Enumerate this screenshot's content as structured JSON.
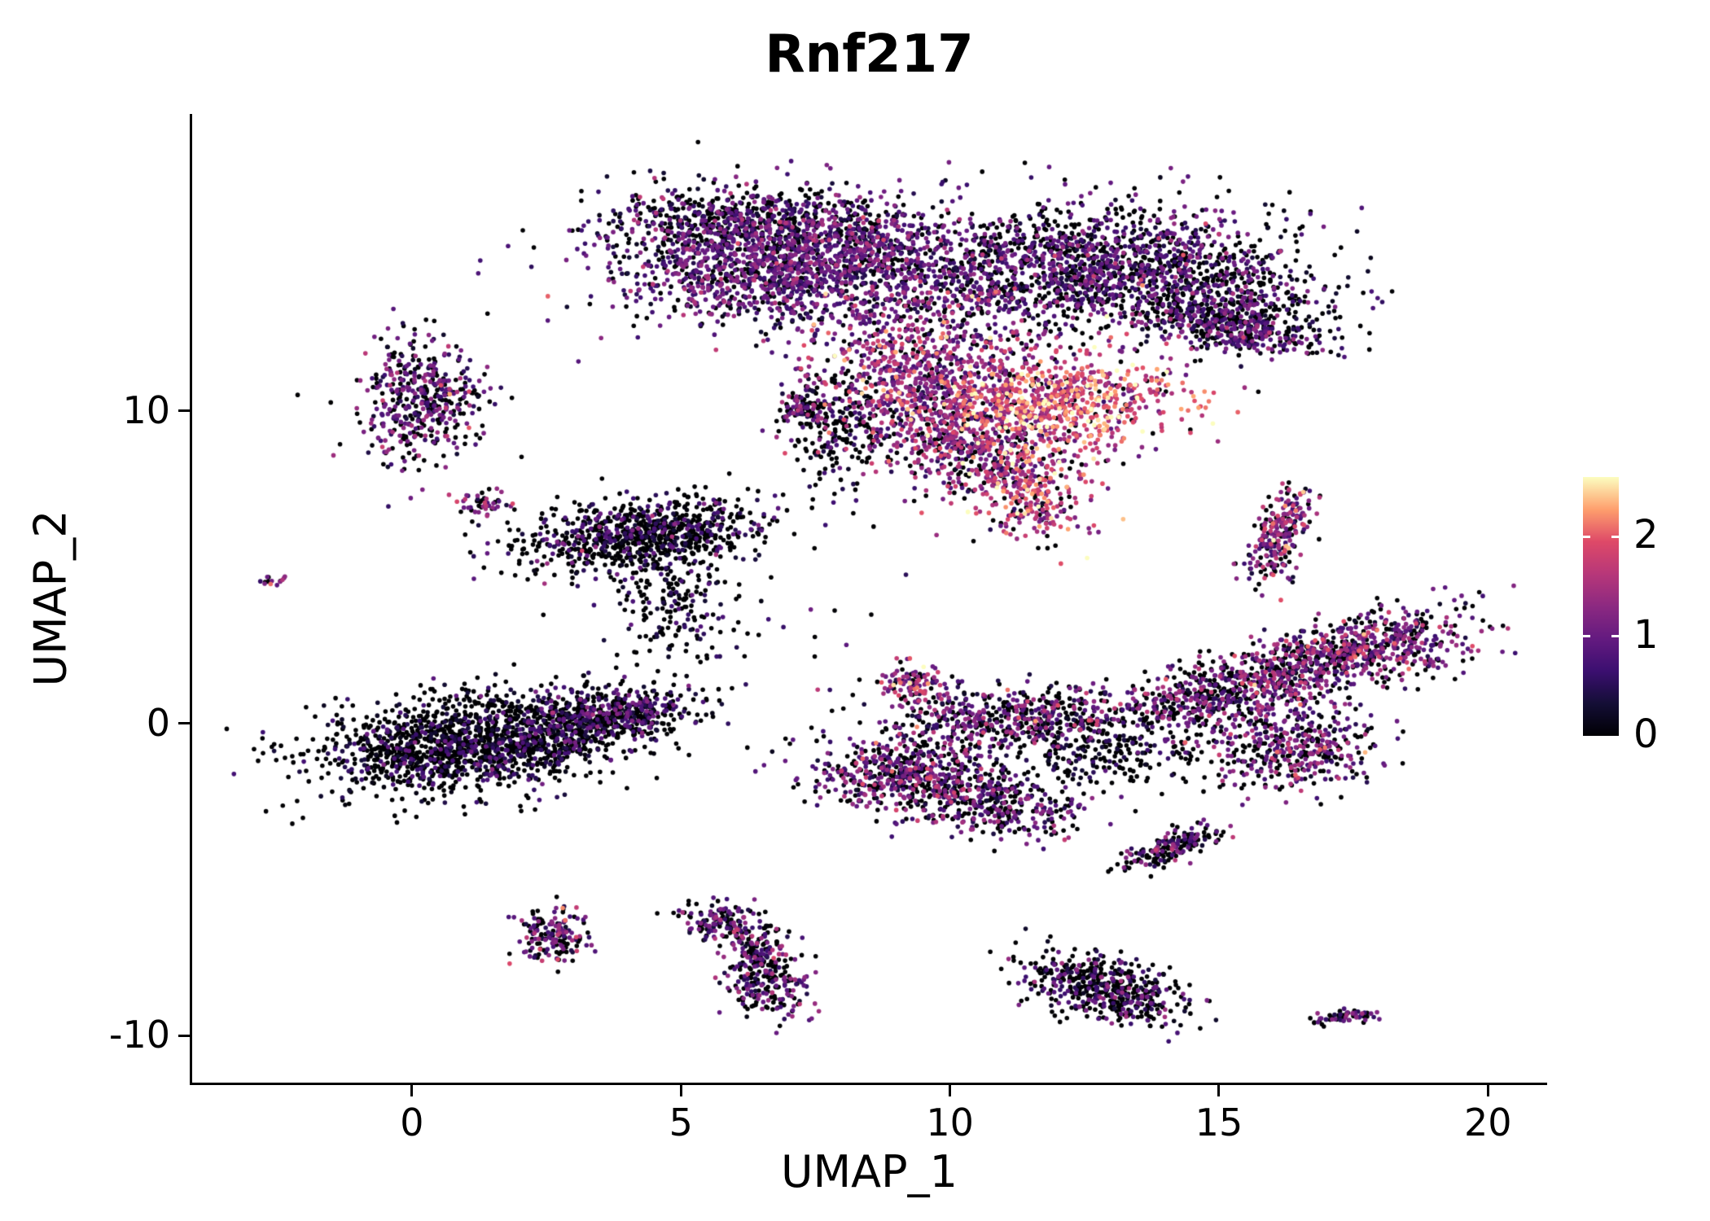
{
  "chart_data": {
    "type": "scatter",
    "title": "Rnf217",
    "xlabel": "UMAP_1",
    "ylabel": "UMAP_2",
    "xlim": [
      -4.1,
      21.1
    ],
    "ylim": [
      -11.5,
      19.5
    ],
    "x_ticks": [
      0,
      5,
      10,
      15,
      20
    ],
    "y_ticks": [
      10,
      0,
      -10
    ],
    "grid": false,
    "legend_position": "right",
    "point_radius": 2.8,
    "seed": 7,
    "colorbar": {
      "ticks": [
        2,
        1,
        0
      ],
      "vmin": 0,
      "vmax": 2.6,
      "colormap": "magma",
      "stops": [
        [
          0.0,
          "#000004"
        ],
        [
          0.125,
          "#140e36"
        ],
        [
          0.25,
          "#3b0f70"
        ],
        [
          0.375,
          "#641a80"
        ],
        [
          0.5,
          "#8c2981"
        ],
        [
          0.625,
          "#b73779"
        ],
        [
          0.75,
          "#de4968"
        ],
        [
          0.875,
          "#fe9f6d"
        ],
        [
          1.0,
          "#fcfdbf"
        ]
      ]
    },
    "clusters": [
      {
        "name": "top-left-lobe",
        "cx": 7.2,
        "cy": 14.8,
        "sx": 1.7,
        "sy": 1.05,
        "angle": 0,
        "n": 2000,
        "p0": 0.22,
        "mean": 0.85,
        "sd": 0.4
      },
      {
        "name": "top-fringe",
        "cx": 6.0,
        "cy": 16.2,
        "sx": 1.3,
        "sy": 0.5,
        "angle": 0,
        "n": 350,
        "p0": 0.55,
        "mean": 0.6,
        "sd": 0.35
      },
      {
        "name": "top-right-lobe",
        "cx": 12.4,
        "cy": 14.6,
        "sx": 1.8,
        "sy": 1.0,
        "angle": 10,
        "n": 1500,
        "p0": 0.42,
        "mean": 0.8,
        "sd": 0.4
      },
      {
        "name": "top-right-edge",
        "cx": 15.0,
        "cy": 13.5,
        "sx": 1.1,
        "sy": 0.7,
        "angle": -10,
        "n": 500,
        "p0": 0.5,
        "mean": 0.7,
        "sd": 0.4
      },
      {
        "name": "top-right-ring",
        "cx": 15.4,
        "cy": 12.6,
        "sx": 0.85,
        "sy": 0.35,
        "angle": -15,
        "n": 300,
        "p0": 0.45,
        "mean": 0.8,
        "sd": 0.4
      },
      {
        "name": "mid-bright-left",
        "cx": 9.6,
        "cy": 11.0,
        "sx": 1.1,
        "sy": 1.15,
        "angle": 0,
        "n": 900,
        "p0": 0.12,
        "mean": 1.25,
        "sd": 0.5
      },
      {
        "name": "mid-bright-hot",
        "cx": 12.0,
        "cy": 10.2,
        "sx": 1.15,
        "sy": 0.8,
        "angle": 10,
        "n": 800,
        "p0": 0.1,
        "mean": 1.8,
        "sd": 0.45
      },
      {
        "name": "mid-lower",
        "cx": 10.3,
        "cy": 8.8,
        "sx": 0.7,
        "sy": 0.7,
        "angle": 0,
        "n": 350,
        "p0": 0.25,
        "mean": 1.2,
        "sd": 0.45
      },
      {
        "name": "mid-hook",
        "cx": 11.5,
        "cy": 7.4,
        "sx": 0.6,
        "sy": 0.75,
        "angle": 0,
        "n": 300,
        "p0": 0.2,
        "mean": 1.6,
        "sd": 0.5
      },
      {
        "name": "mid-dark-trail",
        "cx": 8.0,
        "cy": 9.4,
        "sx": 0.5,
        "sy": 0.9,
        "angle": 0,
        "n": 200,
        "p0": 0.7,
        "mean": 0.5,
        "sd": 0.3
      },
      {
        "name": "mid-small-clump",
        "cx": 7.2,
        "cy": 10.0,
        "sx": 0.2,
        "sy": 0.28,
        "angle": 0,
        "n": 80,
        "p0": 0.45,
        "mean": 0.9,
        "sd": 0.4
      },
      {
        "name": "upper-left-cluster",
        "cx": 0.2,
        "cy": 10.4,
        "sx": 0.55,
        "sy": 1.0,
        "angle": 0,
        "n": 450,
        "p0": 0.42,
        "mean": 0.9,
        "sd": 0.45
      },
      {
        "name": "small-dot-left",
        "cx": 1.3,
        "cy": 7.0,
        "sx": 0.28,
        "sy": 0.22,
        "angle": 0,
        "n": 50,
        "p0": 0.4,
        "mean": 1.1,
        "sd": 0.5
      },
      {
        "name": "tiny-dot-far-left",
        "cx": -2.6,
        "cy": 4.6,
        "sx": 0.13,
        "sy": 0.12,
        "angle": 0,
        "n": 14,
        "p0": 0.4,
        "mean": 1.1,
        "sd": 0.4
      },
      {
        "name": "mid-left-cluster",
        "cx": 4.2,
        "cy": 6.0,
        "sx": 1.15,
        "sy": 0.55,
        "angle": 12,
        "n": 850,
        "p0": 0.66,
        "mean": 0.6,
        "sd": 0.35
      },
      {
        "name": "mid-left-scatter",
        "cx": 4.8,
        "cy": 3.9,
        "sx": 0.55,
        "sy": 1.0,
        "angle": 0,
        "n": 200,
        "p0": 0.7,
        "mean": 0.5,
        "sd": 0.3
      },
      {
        "name": "left-main-cluster",
        "cx": 1.2,
        "cy": -0.6,
        "sx": 1.5,
        "sy": 0.75,
        "angle": 12,
        "n": 1700,
        "p0": 0.72,
        "mean": 0.5,
        "sd": 0.3
      },
      {
        "name": "left-main-east",
        "cx": 3.8,
        "cy": 0.3,
        "sx": 0.8,
        "sy": 0.4,
        "angle": 10,
        "n": 400,
        "p0": 0.5,
        "mean": 0.75,
        "sd": 0.35
      },
      {
        "name": "right-band-upper",
        "cx": 17.4,
        "cy": 2.2,
        "sx": 1.35,
        "sy": 0.55,
        "angle": 25,
        "n": 800,
        "p0": 0.32,
        "mean": 1.0,
        "sd": 0.5
      },
      {
        "name": "right-band-mid",
        "cx": 15.0,
        "cy": 0.9,
        "sx": 1.0,
        "sy": 0.5,
        "angle": 20,
        "n": 450,
        "p0": 0.38,
        "mean": 1.0,
        "sd": 0.45
      },
      {
        "name": "center-band",
        "cx": 11.2,
        "cy": 0.2,
        "sx": 1.2,
        "sy": 0.5,
        "angle": 5,
        "n": 550,
        "p0": 0.42,
        "mean": 0.95,
        "sd": 0.45
      },
      {
        "name": "center-band-hook",
        "cx": 9.3,
        "cy": 1.2,
        "sx": 0.3,
        "sy": 0.35,
        "angle": 0,
        "n": 120,
        "p0": 0.25,
        "mean": 1.2,
        "sd": 0.5
      },
      {
        "name": "lower-left-branch",
        "cx": 9.2,
        "cy": -1.7,
        "sx": 0.85,
        "sy": 0.6,
        "angle": -10,
        "n": 550,
        "p0": 0.38,
        "mean": 1.0,
        "sd": 0.45
      },
      {
        "name": "lower-mid-branch",
        "cx": 10.8,
        "cy": -2.6,
        "sx": 0.8,
        "sy": 0.5,
        "angle": -20,
        "n": 350,
        "p0": 0.42,
        "mean": 0.9,
        "sd": 0.4
      },
      {
        "name": "right-lower-ext",
        "cx": 16.3,
        "cy": -0.8,
        "sx": 0.85,
        "sy": 0.65,
        "angle": 15,
        "n": 450,
        "p0": 0.38,
        "mean": 1.0,
        "sd": 0.45
      },
      {
        "name": "center-dark-join",
        "cx": 12.8,
        "cy": -0.9,
        "sx": 0.9,
        "sy": 0.55,
        "angle": 0,
        "n": 220,
        "p0": 0.7,
        "mean": 0.4,
        "sd": 0.3
      },
      {
        "name": "right-sliver",
        "cx": 16.1,
        "cy": 6.0,
        "sx": 0.25,
        "sy": 0.85,
        "angle": -12,
        "n": 250,
        "p0": 0.28,
        "mean": 1.2,
        "sd": 0.5
      },
      {
        "name": "small-sliver-mid",
        "cx": 14.1,
        "cy": -4.0,
        "sx": 0.55,
        "sy": 0.18,
        "angle": 35,
        "n": 180,
        "p0": 0.5,
        "mean": 0.8,
        "sd": 0.4
      },
      {
        "name": "bottom-arc-top",
        "cx": 5.8,
        "cy": -6.4,
        "sx": 0.45,
        "sy": 0.3,
        "angle": -20,
        "n": 130,
        "p0": 0.45,
        "mean": 0.9,
        "sd": 0.4
      },
      {
        "name": "bottom-arc-mid",
        "cx": 6.5,
        "cy": -7.3,
        "sx": 0.3,
        "sy": 0.5,
        "angle": 0,
        "n": 150,
        "p0": 0.45,
        "mean": 0.9,
        "sd": 0.4
      },
      {
        "name": "bottom-arc-low",
        "cx": 6.6,
        "cy": -8.4,
        "sx": 0.35,
        "sy": 0.5,
        "angle": 15,
        "n": 160,
        "p0": 0.45,
        "mean": 0.9,
        "sd": 0.4
      },
      {
        "name": "bottom-small-round",
        "cx": 2.6,
        "cy": -6.8,
        "sx": 0.3,
        "sy": 0.42,
        "angle": 0,
        "n": 170,
        "p0": 0.38,
        "mean": 1.0,
        "sd": 0.45
      },
      {
        "name": "bottom-right-cluster",
        "cx": 12.9,
        "cy": -8.5,
        "sx": 0.8,
        "sy": 0.45,
        "angle": -30,
        "n": 500,
        "p0": 0.58,
        "mean": 0.75,
        "sd": 0.4
      },
      {
        "name": "bottom-right-tiny",
        "cx": 17.3,
        "cy": -9.4,
        "sx": 0.3,
        "sy": 0.1,
        "angle": 10,
        "n": 60,
        "p0": 0.4,
        "mean": 0.9,
        "sd": 0.4
      },
      {
        "name": "stray-scatter",
        "cx": 6.0,
        "cy": 3.0,
        "sx": 1.6,
        "sy": 1.6,
        "angle": 0,
        "n": 25,
        "p0": 0.6,
        "mean": 0.6,
        "sd": 0.4
      }
    ]
  }
}
